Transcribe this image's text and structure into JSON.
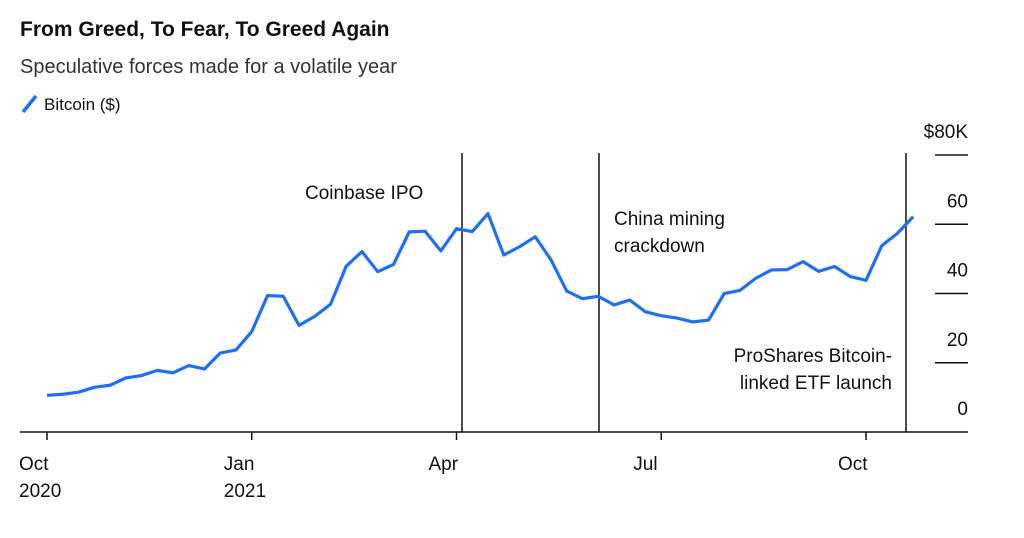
{
  "chart_data": {
    "type": "line",
    "title": "From Greed, To Fear, To Greed Again",
    "subtitle": "Speculative forces made for a volatile year",
    "categories": [
      "Oct 2020",
      null,
      null,
      null,
      null,
      null,
      null,
      null,
      null,
      null,
      null,
      null,
      null,
      "Jan 2021",
      null,
      null,
      null,
      null,
      null,
      null,
      null,
      null,
      null,
      null,
      null,
      null,
      "Apr",
      null,
      null,
      null,
      null,
      null,
      null,
      null,
      null,
      null,
      null,
      null,
      null,
      "Jul",
      null,
      null,
      null,
      null,
      null,
      null,
      null,
      null,
      null,
      null,
      null,
      null,
      "Oct",
      null,
      null,
      null
    ],
    "series": [
      {
        "name": "Bitcoin ($)",
        "color": "#1f6ff0",
        "values": [
          10.6,
          10.9,
          11.5,
          12.9,
          13.5,
          15.6,
          16.3,
          17.8,
          17.1,
          19.2,
          18.2,
          22.8,
          23.7,
          29.0,
          39.4,
          39.2,
          30.8,
          33.4,
          36.9,
          47.9,
          52.1,
          46.3,
          48.4,
          57.8,
          58.0,
          52.3,
          58.7,
          57.9,
          63.1,
          51.1,
          53.5,
          56.4,
          49.7,
          40.7,
          38.5,
          39.2,
          36.7,
          38.1,
          34.7,
          33.6,
          32.9,
          31.8,
          32.3,
          40.0,
          40.9,
          44.4,
          46.8,
          46.9,
          49.2,
          46.4,
          47.8,
          44.9,
          43.8,
          53.8,
          57.4,
          62.2
        ]
      }
    ],
    "ylim": [
      0,
      80
    ],
    "yticks": [
      0,
      20,
      40,
      60,
      {
        "value": 80,
        "label": "$80K"
      }
    ],
    "annotations": [
      "Coinbase IPO",
      "China mining crackdown",
      "ProShares Bitcoin-linked ETF launch"
    ],
    "legend": "top-left"
  }
}
